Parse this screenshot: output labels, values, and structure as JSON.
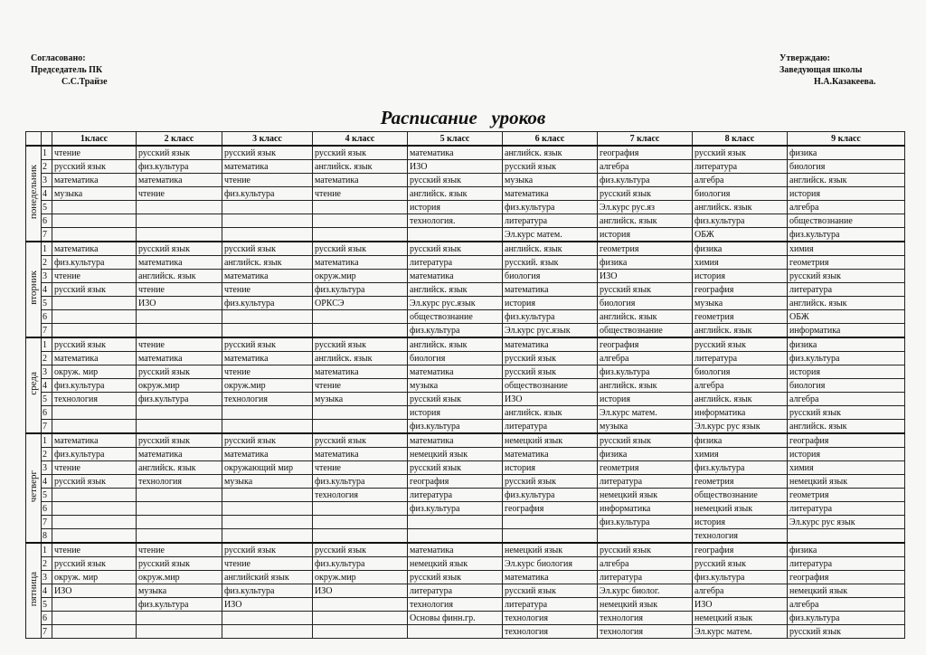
{
  "header": {
    "left": {
      "line1": "Согласовано:",
      "line2": "Председатель ПК",
      "name": "С.С.Трайзе"
    },
    "right": {
      "line1": "Утверждаю:",
      "line2": "Заведующая школы",
      "name": "Н.А.Казакеева."
    },
    "title": "Расписание   уроков"
  },
  "table": {
    "columns": [
      "1класс",
      "2 класс",
      "3 класс",
      "4 класс",
      "5 класс",
      "6 класс",
      "7 класс",
      "8 класс",
      "9 класс"
    ],
    "days": [
      {
        "name": "понедельник",
        "lessons": [
          {
            "number": 1,
            "cells": [
              "чтение",
              "русский язык",
              "русский язык",
              "русский язык",
              "математика",
              "английск. язык",
              "география",
              "русский язык",
              "физика"
            ]
          },
          {
            "number": 2,
            "cells": [
              "русский язык",
              "физ.культура",
              "математика",
              "английск. язык",
              "ИЗО",
              "русский язык",
              "алгебра",
              "литература",
              "биология"
            ]
          },
          {
            "number": 3,
            "cells": [
              "математика",
              "математика",
              "чтение",
              "математика",
              "русский язык",
              "музыка",
              "физ.культура",
              "алгебра",
              "английск. язык"
            ]
          },
          {
            "number": 4,
            "cells": [
              "музыка",
              "чтение",
              "физ.культура",
              "чтение",
              "английск. язык",
              "математика",
              "русский язык",
              "биология",
              "история"
            ]
          },
          {
            "number": 5,
            "cells": [
              null,
              null,
              null,
              null,
              "история",
              "физ.культура",
              "Эл.курс рус.яз",
              "английск. язык",
              "алгебра"
            ]
          },
          {
            "number": 6,
            "cells": [
              null,
              null,
              null,
              null,
              "технология.",
              "литература",
              "английск. язык",
              "физ.культура",
              "обществознание"
            ]
          },
          {
            "number": 7,
            "cells": [
              null,
              null,
              null,
              null,
              null,
              "Эл.курс матем.",
              "история",
              "ОБЖ",
              "физ.культура"
            ]
          }
        ]
      },
      {
        "name": "вторник",
        "lessons": [
          {
            "number": 1,
            "cells": [
              "математика",
              "русский язык",
              "русский язык",
              "русский язык",
              "русский язык",
              "английск. язык",
              "геометрия",
              "физика",
              "химия"
            ]
          },
          {
            "number": 2,
            "cells": [
              "физ.культура",
              "математика",
              "английск. язык",
              "математика",
              "литература",
              "русский. язык",
              "физика",
              "химия",
              "геометрия"
            ]
          },
          {
            "number": 3,
            "cells": [
              "чтение",
              "английск. язык",
              "математика",
              "окруж.мир",
              "математика",
              "биология",
              "ИЗО",
              "история",
              "русский язык"
            ]
          },
          {
            "number": 4,
            "cells": [
              "русский язык",
              "чтение",
              "чтение",
              "физ.культура",
              "английск. язык",
              "математика",
              "русский язык",
              "география",
              "литература"
            ]
          },
          {
            "number": 5,
            "cells": [
              null,
              "ИЗО",
              "физ.культура",
              "ОРКСЭ",
              "Эл.курс рус.язык",
              "история",
              "биология",
              "музыка",
              "английск. язык"
            ]
          },
          {
            "number": 6,
            "cells": [
              null,
              null,
              null,
              null,
              "обществознание",
              "физ.культура",
              "английск. язык",
              "геометрия",
              "ОБЖ"
            ]
          },
          {
            "number": 7,
            "cells": [
              null,
              null,
              null,
              null,
              "физ.культура",
              "Эл.курс рус.язык",
              "обществознание",
              "английск. язык",
              "информатика"
            ]
          }
        ]
      },
      {
        "name": "среда",
        "lessons": [
          {
            "number": 1,
            "cells": [
              "русский язык",
              "чтение",
              "русский язык",
              "русский язык",
              "английск. язык",
              "математика",
              "география",
              "русский язык",
              "физика"
            ]
          },
          {
            "number": 2,
            "cells": [
              "математика",
              "математика",
              "математика",
              "английск. язык",
              "биология",
              "русский язык",
              "алгебра",
              "литература",
              "физ.культура"
            ]
          },
          {
            "number": 3,
            "cells": [
              "окруж. мир",
              "русский язык",
              "чтение",
              "математика",
              "математика",
              "русский язык",
              "физ.культура",
              "биология",
              "история"
            ]
          },
          {
            "number": 4,
            "cells": [
              "физ.культура",
              "окруж.мир",
              "окруж.мир",
              "чтение",
              "музыка",
              "обществознание",
              "английск. язык",
              "алгебра",
              "биология"
            ]
          },
          {
            "number": 5,
            "cells": [
              "технология",
              "физ.культура",
              "технология",
              "музыка",
              "русский язык",
              "ИЗО",
              "история",
              "английск. язык",
              "алгебра"
            ]
          },
          {
            "number": 6,
            "cells": [
              null,
              null,
              null,
              null,
              "история",
              "английск. язык",
              "Эл.курс матем.",
              "информатика",
              "русский язык"
            ]
          },
          {
            "number": 7,
            "cells": [
              null,
              null,
              null,
              null,
              "физ.культура",
              "литература",
              "музыка",
              "Эл.курс рус язык",
              "английск. язык"
            ]
          }
        ]
      },
      {
        "name": "четверг",
        "lessons": [
          {
            "number": 1,
            "cells": [
              "математика",
              "русский язык",
              "русский язык",
              "русский язык",
              "математика",
              "немецкий язык",
              "русский язык",
              "физика",
              "география"
            ]
          },
          {
            "number": 2,
            "cells": [
              "физ.культура",
              "математика",
              "математика",
              "математика",
              "немецкий язык",
              "математика",
              "физика",
              "химия",
              "история"
            ]
          },
          {
            "number": 3,
            "cells": [
              "чтение",
              "английск. язык",
              "окружающий мир",
              "чтение",
              "русский язык",
              "история",
              "геометрия",
              "физ.культура",
              "химия"
            ]
          },
          {
            "number": 4,
            "cells": [
              "русский язык",
              "технология",
              "музыка",
              "физ.культура",
              "география",
              "русский язык",
              "литература",
              "геометрия",
              "немецкий язык"
            ]
          },
          {
            "number": 5,
            "cells": [
              null,
              null,
              null,
              "технология",
              "литература",
              "физ.культура",
              "немецкий язык",
              "обществознание",
              "геометрия"
            ]
          },
          {
            "number": 6,
            "cells": [
              null,
              null,
              null,
              null,
              "физ.культура",
              "география",
              "информатика",
              "немецкий язык",
              "литература"
            ]
          },
          {
            "number": 7,
            "cells": [
              null,
              null,
              null,
              null,
              null,
              null,
              "физ.культура",
              "история",
              "Эл.курс рус язык"
            ]
          },
          {
            "number": 8,
            "cells": [
              null,
              null,
              null,
              null,
              null,
              null,
              null,
              "технология",
              null
            ]
          }
        ]
      },
      {
        "name": "пятница",
        "lessons": [
          {
            "number": 1,
            "cells": [
              "чтение",
              "чтение",
              "русский язык",
              "русский язык",
              "математика",
              "немецкий язык",
              "русский язык",
              "география",
              "физика"
            ]
          },
          {
            "number": 2,
            "cells": [
              "русский язык",
              "русский язык",
              "чтение",
              "физ.культура",
              "немецкий язык",
              "Эл.курс биология",
              "алгебра",
              "русский язык",
              "литература"
            ]
          },
          {
            "number": 3,
            "cells": [
              "окруж. мир",
              "окруж.мир",
              "английский язык",
              "окруж.мир",
              "русский язык",
              "математика",
              "литература",
              "физ.культура",
              "география"
            ]
          },
          {
            "number": 4,
            "cells": [
              "ИЗО",
              "музыка",
              "физ.культура",
              "ИЗО",
              "литература",
              "русский язык",
              "Эл.курс биолог.",
              "алгебра",
              "немецкий язык"
            ]
          },
          {
            "number": 5,
            "cells": [
              null,
              "физ.культура",
              "ИЗО",
              null,
              "технология",
              "литература",
              "немецкий язык",
              "ИЗО",
              "алгебра"
            ]
          },
          {
            "number": 6,
            "cells": [
              null,
              null,
              null,
              null,
              "Основы финн.гр.",
              "технология",
              "технология",
              "немецкий язык",
              "физ.культура"
            ]
          },
          {
            "number": 7,
            "cells": [
              null,
              null,
              null,
              null,
              null,
              "технология",
              "технология",
              "Эл.курс матем.",
              "русский язык"
            ]
          }
        ]
      }
    ]
  }
}
